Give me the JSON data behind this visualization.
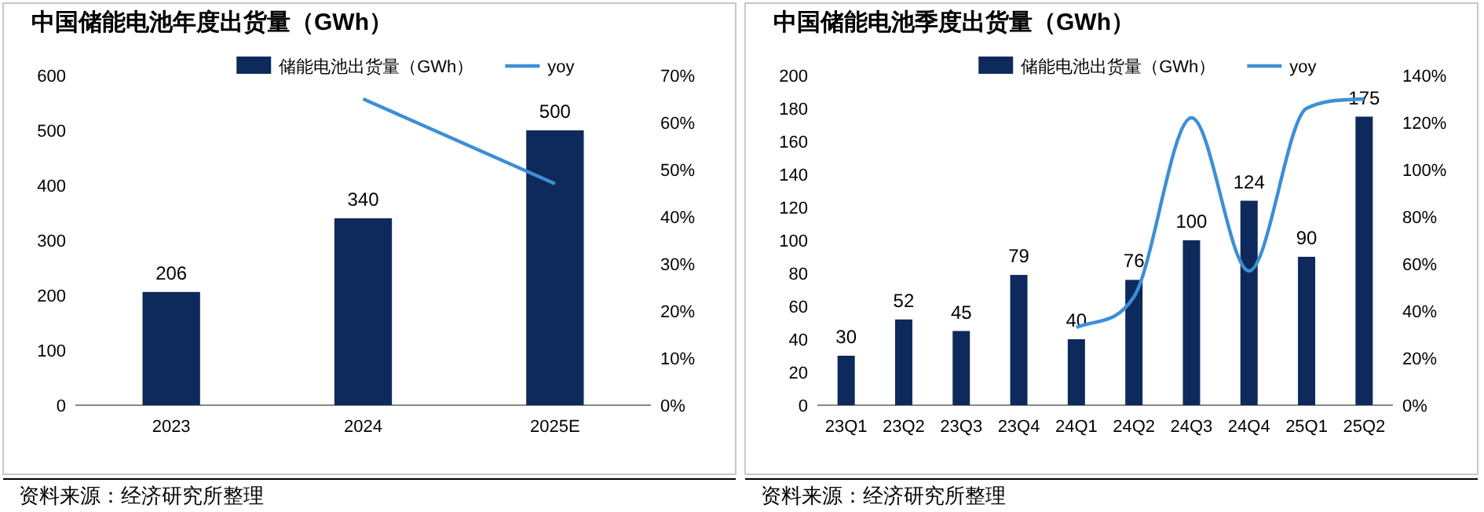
{
  "chart_data": [
    {
      "type": "bar",
      "title": "中国储能电池年度出货量（GWh）",
      "categories": [
        "2023",
        "2024",
        "2025E"
      ],
      "series": [
        {
          "name": "储能电池出货量（GWh）",
          "color": "#0e2a5c",
          "values": [
            206,
            340,
            500
          ],
          "value_labels": [
            "206",
            "340",
            "500"
          ]
        },
        {
          "name": "yoy",
          "type": "line",
          "axis": "y2",
          "color": "#3d8fd6",
          "values": [
            null,
            65,
            47
          ]
        }
      ],
      "ylim": [
        0,
        600
      ],
      "yticks": [
        0,
        100,
        200,
        300,
        400,
        500,
        600
      ],
      "y2lim": [
        0,
        70
      ],
      "y2ticks": [
        {
          "value": 0,
          "label": "0%"
        },
        {
          "value": 10,
          "label": "10%"
        },
        {
          "value": 20,
          "label": "20%"
        },
        {
          "value": 30,
          "label": "30%"
        },
        {
          "value": 40,
          "label": "40%"
        },
        {
          "value": 50,
          "label": "50%"
        },
        {
          "value": 60,
          "label": "60%"
        },
        {
          "value": 70,
          "label": "70%"
        }
      ],
      "legend": "top",
      "grid": false,
      "marker": "none",
      "annotations": [
        "资料来源：经济研究所整理"
      ]
    },
    {
      "type": "bar",
      "title": "中国储能电池季度出货量（GWh）",
      "categories": [
        "23Q1",
        "23Q2",
        "23Q3",
        "23Q4",
        "24Q1",
        "24Q2",
        "24Q3",
        "24Q4",
        "25Q1",
        "25Q2"
      ],
      "series": [
        {
          "name": "储能电池出货量（GWh）",
          "color": "#0e2a5c",
          "values": [
            30,
            52,
            45,
            79,
            40,
            76,
            100,
            124,
            90,
            175
          ],
          "value_labels": [
            "30",
            "52",
            "45",
            "79",
            "40",
            "76",
            "100",
            "124",
            "90",
            "175"
          ]
        },
        {
          "name": "yoy",
          "type": "line",
          "axis": "y2",
          "color": "#3d8fd6",
          "values": [
            null,
            null,
            null,
            null,
            33,
            46,
            122,
            57,
            126,
            130
          ]
        }
      ],
      "ylim": [
        0,
        200
      ],
      "yticks": [
        0,
        20,
        40,
        60,
        80,
        100,
        120,
        140,
        160,
        180,
        200
      ],
      "y2lim": [
        0,
        140
      ],
      "y2ticks": [
        {
          "value": 0,
          "label": "0%"
        },
        {
          "value": 20,
          "label": "20%"
        },
        {
          "value": 40,
          "label": "40%"
        },
        {
          "value": 60,
          "label": "60%"
        },
        {
          "value": 80,
          "label": "80%"
        },
        {
          "value": 100,
          "label": "100%"
        },
        {
          "value": 120,
          "label": "120%"
        },
        {
          "value": 140,
          "label": "140%"
        }
      ],
      "legend": "top",
      "grid": false,
      "marker": "none",
      "annotations": [
        "资料来源：经济研究所整理"
      ]
    }
  ]
}
